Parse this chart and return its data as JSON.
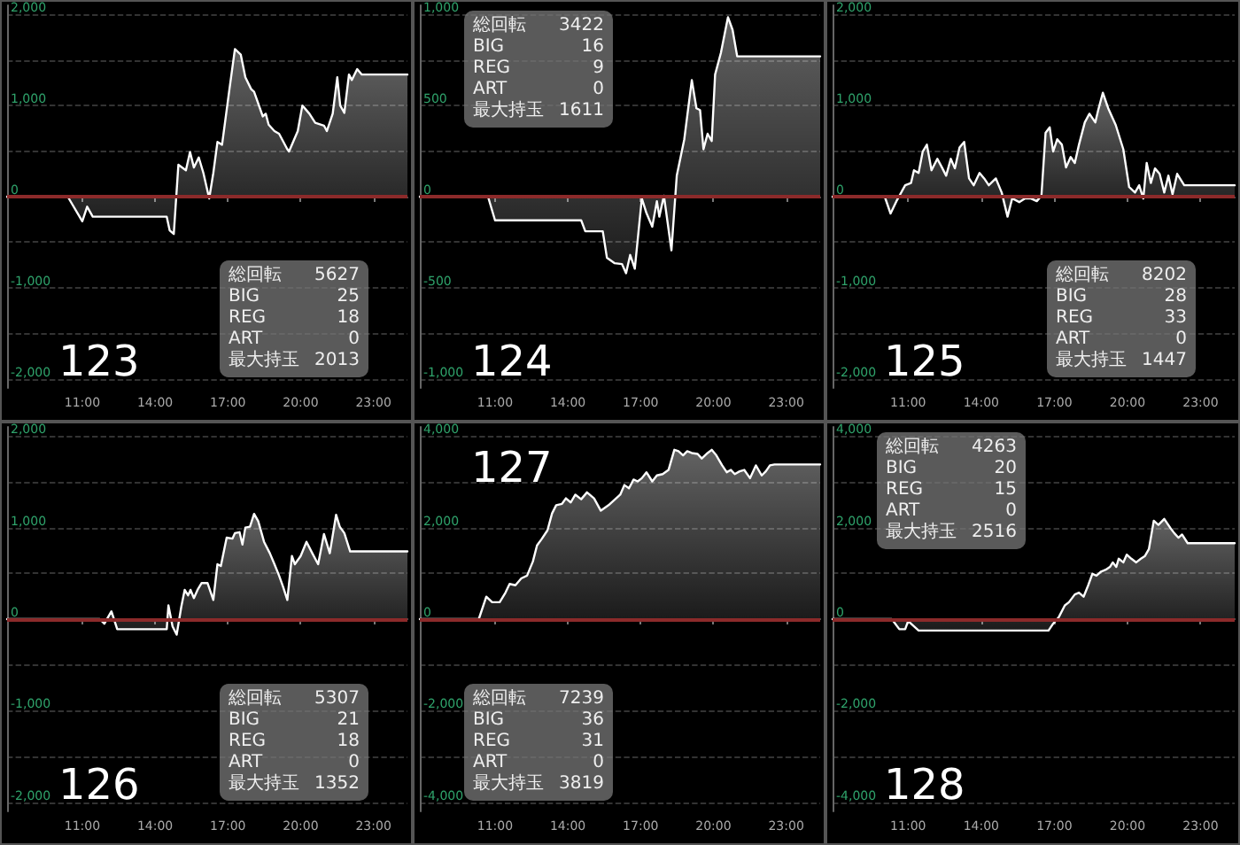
{
  "chart_data": [
    {
      "type": "area",
      "title": "123",
      "color": "#ffffff",
      "grid": "y",
      "xlim": [
        7.9,
        24.4
      ],
      "ylim": [
        -2100,
        2100
      ],
      "xticks": [
        {
          "value": 11,
          "label": "11:00"
        },
        {
          "value": 14,
          "label": "14:00"
        },
        {
          "value": 17,
          "label": "17:00"
        },
        {
          "value": 20,
          "label": "20:00"
        },
        {
          "value": 23,
          "label": "23:00"
        }
      ],
      "yticks": [
        {
          "value": -2000,
          "label": "-2,000"
        },
        {
          "value": -1500,
          "label": null
        },
        {
          "value": -1000,
          "label": "-1,000"
        },
        {
          "value": -500,
          "label": null
        },
        {
          "value": 0,
          "label": "0"
        },
        {
          "value": 500,
          "label": null
        },
        {
          "value": 1000,
          "label": "1,000"
        },
        {
          "value": 1500,
          "label": null
        },
        {
          "value": 2000,
          "label": "2,000"
        }
      ],
      "x": [
        7.9,
        10.4,
        11.0,
        11.2,
        11.43,
        14.48,
        14.6,
        14.77,
        14.96,
        15.27,
        15.44,
        15.6,
        15.8,
        15.99,
        16.23,
        16.4,
        16.57,
        16.76,
        17.05,
        17.29,
        17.53,
        17.72,
        17.96,
        18.08,
        18.44,
        18.56,
        18.68,
        18.92,
        19.11,
        19.45,
        19.52,
        19.88,
        20.07,
        20.36,
        20.6,
        20.96,
        21.08,
        21.32,
        21.51,
        21.63,
        21.8,
        21.99,
        22.11,
        22.33,
        22.52,
        24.4
      ],
      "values": [
        0,
        0,
        -270,
        -110,
        -220,
        -220,
        -370,
        -410,
        350,
        290,
        490,
        320,
        430,
        260,
        -20,
        260,
        600,
        570,
        1150,
        1620,
        1560,
        1310,
        1180,
        1150,
        880,
        910,
        790,
        720,
        690,
        520,
        495,
        720,
        1000,
        910,
        810,
        780,
        720,
        910,
        1310,
        1000,
        920,
        1340,
        1280,
        1400,
        1340,
        1340
      ],
      "ref_lines": [
        {
          "axis": "y",
          "value": 0,
          "label": null,
          "color": "#8c2a2a"
        }
      ],
      "annotations": [
        "総回転 5627",
        "BIG 25",
        "REG 18",
        "ART 0",
        "最大持玉 2013"
      ]
    },
    {
      "type": "area",
      "title": "124",
      "color": "#ffffff",
      "grid": "y",
      "xlim": [
        7.9,
        24.4
      ],
      "ylim": [
        -1050,
        1050
      ],
      "xticks": [
        {
          "value": 11,
          "label": "11:00"
        },
        {
          "value": 14,
          "label": "14:00"
        },
        {
          "value": 17,
          "label": "17:00"
        },
        {
          "value": 20,
          "label": "20:00"
        },
        {
          "value": 23,
          "label": "23:00"
        }
      ],
      "yticks": [
        {
          "value": -1000,
          "label": "-1,000"
        },
        {
          "value": -750,
          "label": null
        },
        {
          "value": -500,
          "label": "-500"
        },
        {
          "value": -250,
          "label": null
        },
        {
          "value": 0,
          "label": "0"
        },
        {
          "value": 250,
          "label": null
        },
        {
          "value": 500,
          "label": "500"
        },
        {
          "value": 750,
          "label": null
        },
        {
          "value": 1000,
          "label": "1,000"
        }
      ],
      "x": [
        7.9,
        10.71,
        11.0,
        14.55,
        14.72,
        15.44,
        15.61,
        15.92,
        16.23,
        16.4,
        16.57,
        16.76,
        17.05,
        17.24,
        17.48,
        17.67,
        17.77,
        17.96,
        18.27,
        18.49,
        18.8,
        19.11,
        19.3,
        19.45,
        19.59,
        19.76,
        19.93,
        20.07,
        20.31,
        20.6,
        20.79,
        20.98,
        24.4
      ],
      "values": [
        0,
        0,
        -130,
        -130,
        -190,
        -190,
        -335,
        -365,
        -370,
        -420,
        -320,
        -395,
        -10,
        -90,
        -165,
        -25,
        -110,
        5,
        -295,
        115,
        315,
        640,
        485,
        475,
        260,
        345,
        305,
        670,
        790,
        985,
        915,
        770,
        770
      ],
      "ref_lines": [
        {
          "axis": "y",
          "value": 0,
          "label": null,
          "color": "#8c2a2a"
        }
      ],
      "annotations": [
        "総回転 3422",
        "BIG 16",
        "REG 9",
        "ART 0",
        "最大持玉 1611"
      ]
    },
    {
      "type": "area",
      "title": "125",
      "color": "#ffffff",
      "grid": "y",
      "xlim": [
        7.9,
        24.4
      ],
      "ylim": [
        -2100,
        2100
      ],
      "xticks": [
        {
          "value": 11,
          "label": "11:00"
        },
        {
          "value": 14,
          "label": "14:00"
        },
        {
          "value": 17,
          "label": "17:00"
        },
        {
          "value": 20,
          "label": "20:00"
        },
        {
          "value": 23,
          "label": "23:00"
        }
      ],
      "yticks": [
        {
          "value": -2000,
          "label": "-2,000"
        },
        {
          "value": -1500,
          "label": null
        },
        {
          "value": -1000,
          "label": "-1,000"
        },
        {
          "value": -500,
          "label": null
        },
        {
          "value": 0,
          "label": "0"
        },
        {
          "value": 500,
          "label": null
        },
        {
          "value": 1000,
          "label": "1,000"
        },
        {
          "value": 1500,
          "label": null
        },
        {
          "value": 2000,
          "label": "2,000"
        }
      ],
      "x": [
        7.9,
        10.04,
        10.28,
        10.52,
        10.88,
        11.12,
        11.24,
        11.43,
        11.6,
        11.77,
        11.96,
        12.2,
        12.39,
        12.56,
        12.75,
        12.92,
        13.11,
        13.3,
        13.5,
        13.69,
        13.93,
        14.12,
        14.31,
        14.6,
        14.84,
        15.08,
        15.27,
        15.56,
        15.8,
        16.04,
        16.28,
        16.47,
        16.64,
        16.81,
        16.95,
        17.12,
        17.31,
        17.48,
        17.67,
        17.84,
        18.01,
        18.25,
        18.44,
        18.68,
        18.8,
        18.99,
        19.21,
        19.52,
        19.83,
        20.07,
        20.31,
        20.48,
        20.65,
        20.79,
        20.96,
        21.13,
        21.32,
        21.51,
        21.68,
        21.85,
        22.04,
        22.33,
        24.4
      ],
      "values": [
        0,
        0,
        -185,
        -50,
        125,
        150,
        290,
        260,
        495,
        570,
        290,
        415,
        320,
        230,
        415,
        310,
        540,
        600,
        200,
        125,
        260,
        200,
        125,
        200,
        45,
        -220,
        -20,
        -60,
        -20,
        -20,
        -50,
        10,
        700,
        760,
        495,
        630,
        570,
        320,
        435,
        370,
        570,
        815,
        910,
        815,
        950,
        1140,
        970,
        785,
        520,
        105,
        45,
        125,
        -20,
        370,
        150,
        310,
        250,
        45,
        230,
        25,
        250,
        125,
        125
      ],
      "ref_lines": [
        {
          "axis": "y",
          "value": 0,
          "label": null,
          "color": "#8c2a2a"
        }
      ],
      "annotations": [
        "総回転 8202",
        "BIG 28",
        "REG 33",
        "ART 0",
        "最大持玉 1447"
      ]
    },
    {
      "type": "area",
      "title": "126",
      "color": "#ffffff",
      "grid": "y",
      "xlim": [
        7.9,
        24.4
      ],
      "ylim": [
        -2100,
        2100
      ],
      "xticks": [
        {
          "value": 11,
          "label": "11:00"
        },
        {
          "value": 14,
          "label": "14:00"
        },
        {
          "value": 17,
          "label": "17:00"
        },
        {
          "value": 20,
          "label": "20:00"
        },
        {
          "value": 23,
          "label": "23:00"
        }
      ],
      "yticks": [
        {
          "value": -2000,
          "label": "-2,000"
        },
        {
          "value": -1500,
          "label": null
        },
        {
          "value": -1000,
          "label": "-1,000"
        },
        {
          "value": -500,
          "label": null
        },
        {
          "value": 0,
          "label": "0"
        },
        {
          "value": 500,
          "label": null
        },
        {
          "value": 1000,
          "label": "1,000"
        },
        {
          "value": 1500,
          "label": null
        },
        {
          "value": 2000,
          "label": "2,000"
        }
      ],
      "x": [
        7.9,
        11.72,
        11.91,
        12.2,
        12.44,
        14.48,
        14.55,
        14.72,
        14.89,
        15.08,
        15.22,
        15.36,
        15.46,
        15.6,
        15.75,
        15.92,
        16.16,
        16.4,
        16.57,
        16.71,
        16.95,
        17.19,
        17.29,
        17.48,
        17.6,
        17.72,
        17.91,
        18.08,
        18.25,
        18.49,
        18.73,
        18.92,
        19.11,
        19.28,
        19.45,
        19.64,
        19.76,
        20.0,
        20.24,
        20.48,
        20.72,
        20.96,
        21.2,
        21.46,
        21.61,
        21.8,
        22.04,
        24.4
      ],
      "values": [
        0,
        0,
        -50,
        85,
        -110,
        -110,
        150,
        -80,
        -170,
        135,
        320,
        260,
        320,
        230,
        320,
        395,
        395,
        210,
        600,
        580,
        890,
        880,
        940,
        950,
        815,
        1000,
        1010,
        1150,
        1070,
        845,
        720,
        600,
        475,
        350,
        210,
        690,
        600,
        690,
        845,
        720,
        600,
        930,
        720,
        1140,
        1010,
        940,
        740,
        740
      ],
      "ref_lines": [
        {
          "axis": "y",
          "value": 0,
          "label": null,
          "color": "#8c2a2a"
        }
      ],
      "annotations": [
        "総回転 5307",
        "BIG 21",
        "REG 18",
        "ART 0",
        "最大持玉 1352"
      ]
    },
    {
      "type": "area",
      "title": "127",
      "color": "#ffffff",
      "grid": "y",
      "xlim": [
        7.9,
        24.4
      ],
      "ylim": [
        -4200,
        4200
      ],
      "xticks": [
        {
          "value": 11,
          "label": "11:00"
        },
        {
          "value": 14,
          "label": "14:00"
        },
        {
          "value": 17,
          "label": "17:00"
        },
        {
          "value": 20,
          "label": "20:00"
        },
        {
          "value": 23,
          "label": "23:00"
        }
      ],
      "yticks": [
        {
          "value": -4000,
          "label": "-4,000"
        },
        {
          "value": -3000,
          "label": null
        },
        {
          "value": -2000,
          "label": "-2,000"
        },
        {
          "value": -1000,
          "label": null
        },
        {
          "value": 0,
          "label": "0"
        },
        {
          "value": 1000,
          "label": null
        },
        {
          "value": 2000,
          "label": "2,000"
        },
        {
          "value": 3000,
          "label": null
        },
        {
          "value": 4000,
          "label": "4,000"
        }
      ],
      "x": [
        7.9,
        10.33,
        10.64,
        10.88,
        11.19,
        11.43,
        11.6,
        11.84,
        12.08,
        12.32,
        12.56,
        12.73,
        12.92,
        13.16,
        13.35,
        13.52,
        13.76,
        13.92,
        14.12,
        14.31,
        14.55,
        14.79,
        15.08,
        15.36,
        15.68,
        15.99,
        16.16,
        16.33,
        16.52,
        16.71,
        16.88,
        17.05,
        17.24,
        17.48,
        17.67,
        17.91,
        18.15,
        18.39,
        18.56,
        18.75,
        18.92,
        19.11,
        19.35,
        19.52,
        19.76,
        19.93,
        20.12,
        20.36,
        20.55,
        20.72,
        20.88,
        21.08,
        21.27,
        21.51,
        21.75,
        21.99,
        22.16,
        22.33,
        22.52,
        24.4
      ],
      "values": [
        0,
        0,
        490,
        370,
        370,
        580,
        770,
        740,
        890,
        950,
        1260,
        1610,
        1750,
        1940,
        2310,
        2490,
        2520,
        2640,
        2550,
        2720,
        2620,
        2770,
        2640,
        2370,
        2490,
        2640,
        2720,
        2930,
        2860,
        3050,
        3010,
        3080,
        3210,
        3010,
        3140,
        3170,
        3260,
        3700,
        3670,
        3580,
        3670,
        3630,
        3610,
        3510,
        3630,
        3700,
        3580,
        3360,
        3210,
        3260,
        3170,
        3230,
        3260,
        3080,
        3360,
        3140,
        3230,
        3360,
        3380,
        3380
      ],
      "ref_lines": [
        {
          "axis": "y",
          "value": 0,
          "label": null,
          "color": "#8c2a2a"
        }
      ],
      "annotations": [
        "総回転 7239",
        "BIG 36",
        "REG 31",
        "ART 0",
        "最大持玉 3819"
      ]
    },
    {
      "type": "area",
      "title": "128",
      "color": "#ffffff",
      "grid": "y",
      "xlim": [
        7.9,
        24.4
      ],
      "ylim": [
        -4200,
        4200
      ],
      "xticks": [
        {
          "value": 11,
          "label": "11:00"
        },
        {
          "value": 14,
          "label": "14:00"
        },
        {
          "value": 17,
          "label": "17:00"
        },
        {
          "value": 20,
          "label": "20:00"
        },
        {
          "value": 23,
          "label": "23:00"
        }
      ],
      "yticks": [
        {
          "value": -4000,
          "label": "-4,000"
        },
        {
          "value": -3000,
          "label": null
        },
        {
          "value": -2000,
          "label": "-2,000"
        },
        {
          "value": -1000,
          "label": null
        },
        {
          "value": 0,
          "label": "0"
        },
        {
          "value": 1000,
          "label": null
        },
        {
          "value": 2000,
          "label": "2,000"
        },
        {
          "value": 3000,
          "label": null
        },
        {
          "value": 4000,
          "label": "4,000"
        }
      ],
      "x": [
        7.9,
        10.33,
        10.64,
        10.88,
        11.0,
        11.43,
        16.76,
        16.95,
        17.19,
        17.43,
        17.6,
        17.84,
        18.01,
        18.2,
        18.39,
        18.56,
        18.73,
        18.92,
        19.11,
        19.28,
        19.4,
        19.54,
        19.64,
        19.83,
        19.97,
        20.16,
        20.36,
        20.55,
        20.72,
        20.88,
        21.08,
        21.27,
        21.51,
        21.75,
        21.92,
        22.09,
        22.24,
        22.47,
        24.4
      ],
      "values": [
        0,
        0,
        -220,
        -220,
        -40,
        -250,
        -250,
        -100,
        50,
        300,
        370,
        540,
        580,
        490,
        740,
        990,
        950,
        1040,
        1080,
        1140,
        1240,
        1140,
        1320,
        1240,
        1410,
        1320,
        1240,
        1320,
        1380,
        1530,
        2150,
        2060,
        2190,
        2000,
        1880,
        1780,
        1850,
        1660,
        1660
      ],
      "ref_lines": [
        {
          "axis": "y",
          "value": 0,
          "label": null,
          "color": "#8c2a2a"
        }
      ],
      "annotations": [
        "総回転 4263",
        "BIG 20",
        "REG 15",
        "ART 0",
        "最大持玉 2516"
      ]
    }
  ]
}
